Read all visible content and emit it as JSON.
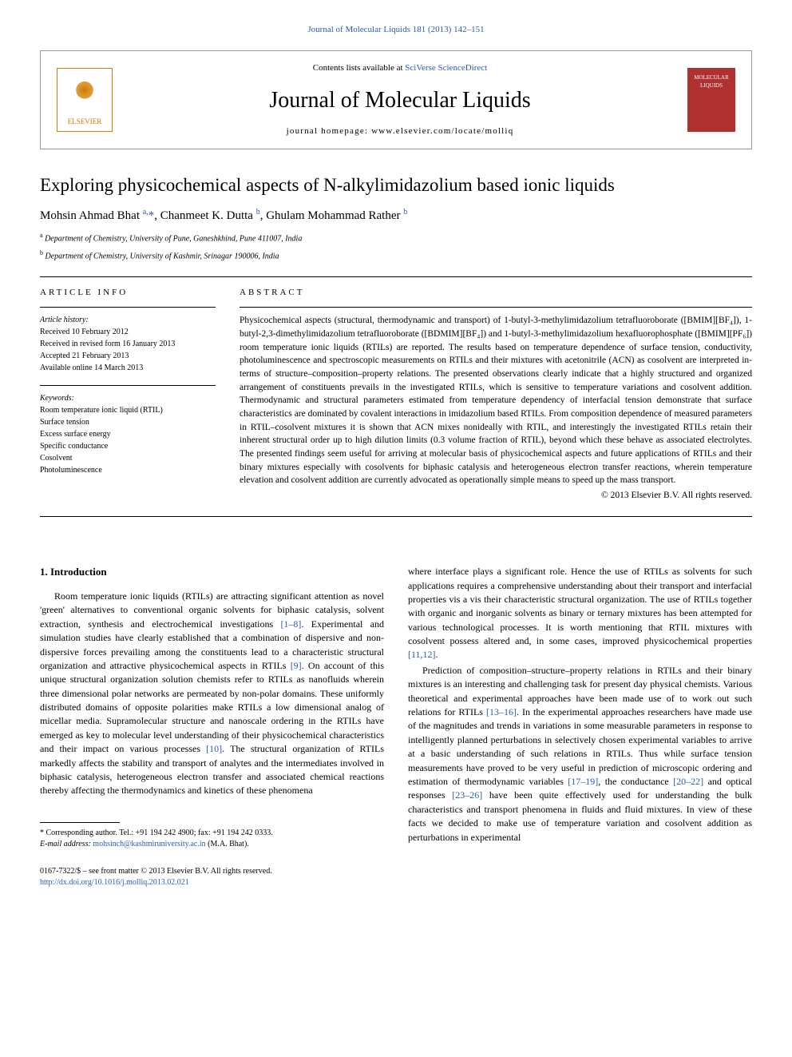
{
  "top_link": "Journal of Molecular Liquids 181 (2013) 142–151",
  "header": {
    "contents_prefix": "Contents lists available at ",
    "contents_link": "SciVerse ScienceDirect",
    "journal_name": "Journal of Molecular Liquids",
    "homepage_prefix": "journal homepage: ",
    "homepage_url": "www.elsevier.com/locate/molliq",
    "elsevier_label": "ELSEVIER",
    "cover_line1": "MOLECULAR",
    "cover_line2": "LIQUIDS"
  },
  "article": {
    "title": "Exploring physicochemical aspects of N-alkylimidazolium based ionic liquids",
    "authors_html": "Mohsin Ahmad Bhat <sup>a,</sup>*, Chanmeet K. Dutta <sup>b</sup>, Ghulam Mohammad Rather <sup>b</sup>",
    "author1": "Mohsin Ahmad Bhat",
    "author1_sup": "a,",
    "author2": "Chanmeet K. Dutta",
    "author2_sup": "b",
    "author3": "Ghulam Mohammad Rather",
    "author3_sup": "b",
    "affil_a": "Department of Chemistry, University of Pune, Ganeshkhind, Pune 411007, India",
    "affil_b": "Department of Chemistry, University of Kashmir, Srinagar 190006, India"
  },
  "info": {
    "section_label": "article info",
    "history_label": "Article history:",
    "received": "Received 10 February 2012",
    "revised": "Received in revised form 16 January 2013",
    "accepted": "Accepted 21 February 2013",
    "online": "Available online 14 March 2013",
    "keywords_label": "Keywords:",
    "kw1": "Room temperature ionic liquid (RTIL)",
    "kw2": "Surface tension",
    "kw3": "Excess surface energy",
    "kw4": "Specific conductance",
    "kw5": "Cosolvent",
    "kw6": "Photoluminescence"
  },
  "abstract": {
    "label": "abstract",
    "text": "Physicochemical aspects (structural, thermodynamic and transport) of 1-butyl-3-methylimidazolium tetrafluoroborate ([BMIM][BF₄]), 1-butyl-2,3-dimethylimidazolium tetrafluoroborate ([BDMIM][BF₄]) and 1-butyl-3-methylimidazolium hexafluorophosphate ([BMIM][PF₆]) room temperature ionic liquids (RTILs) are reported. The results based on temperature dependence of surface tension, conductivity, photoluminescence and spectroscopic measurements on RTILs and their mixtures with acetonitrile (ACN) as cosolvent are interpreted in-terms of structure–composition–property relations. The presented observations clearly indicate that a highly structured and organized arrangement of constituents prevails in the investigated RTILs, which is sensitive to temperature variations and cosolvent addition. Thermodynamic and structural parameters estimated from temperature dependency of interfacial tension demonstrate that surface characteristics are dominated by covalent interactions in imidazolium based RTILs. From composition dependence of measured parameters in RTIL–cosolvent mixtures it is shown that ACN mixes nonideally with RTIL, and interestingly the investigated RTILs retain their inherent structural order up to high dilution limits (0.3 volume fraction of RTIL), beyond which these behave as associated electrolytes. The presented findings seem useful for arriving at molecular basis of physicochemical aspects and future applications of RTILs and their binary mixtures especially with cosolvents for biphasic catalysis and heterogeneous electron transfer reactions, wherein temperature elevation and cosolvent addition are currently advocated as operationally simple means to speed up the mass transport.",
    "copyright": "© 2013 Elsevier B.V. All rights reserved."
  },
  "body": {
    "heading": "1. Introduction",
    "col1_p1_a": "Room temperature ionic liquids (RTILs) are attracting significant attention as novel 'green' alternatives to conventional organic solvents for biphasic catalysis, solvent extraction, synthesis and electrochemical investigations ",
    "col1_cite1": "[1–8]",
    "col1_p1_b": ". Experimental and simulation studies have clearly established that a combination of dispersive and non-dispersive forces prevailing among the constituents lead to a characteristic structural organization and attractive physicochemical aspects in RTILs ",
    "col1_cite2": "[9]",
    "col1_p1_c": ". On account of this unique structural organization solution chemists refer to RTILs as nanofluids wherein three dimensional polar networks are permeated by non-polar domains. These uniformly distributed domains of opposite polarities make RTILs a low dimensional analog of micellar media. Supramolecular structure and nanoscale ordering in the RTILs have emerged as key to molecular level understanding of their physicochemical characteristics and their impact on various processes ",
    "col1_cite3": "[10]",
    "col1_p1_d": ". The structural organization of RTILs markedly affects the stability and transport of analytes and the intermediates involved in biphasic catalysis, heterogeneous electron transfer and associated chemical reactions thereby affecting the thermodynamics and kinetics of these phenomena",
    "col2_p1_a": "where interface plays a significant role. Hence the use of RTILs as solvents for such applications requires a comprehensive understanding about their transport and interfacial properties vis a vis their characteristic structural organization. The use of RTILs together with organic and inorganic solvents as binary or ternary mixtures has been attempted for various technological processes. It is worth mentioning that RTIL mixtures with cosolvent possess altered and, in some cases, improved physicochemical properties ",
    "col2_cite1": "[11,12]",
    "col2_p1_b": ".",
    "col2_p2_a": "Prediction of composition–structure–property relations in RTILs and their binary mixtures is an interesting and challenging task for present day physical chemists. Various theoretical and experimental approaches have been made use of to work out such relations for RTILs ",
    "col2_cite2": "[13–16]",
    "col2_p2_b": ". In the experimental approaches researchers have made use of the magnitudes and trends in variations in some measurable parameters in response to intelligently planned perturbations in selectively chosen experimental variables to arrive at a basic understanding of such relations in RTILs. Thus while surface tension measurements have proved to be very useful in prediction of microscopic ordering and estimation of thermodynamic variables ",
    "col2_cite3": "[17–19]",
    "col2_p2_c": ", the conductance ",
    "col2_cite4": "[20–22]",
    "col2_p2_d": " and optical responses ",
    "col2_cite5": "[23–26]",
    "col2_p2_e": " have been quite effectively used for understanding the bulk characteristics and transport phenomena in fluids and fluid mixtures. In view of these facts we decided to make use of temperature variation and cosolvent addition as perturbations in experimental"
  },
  "footnotes": {
    "corr": "* Corresponding author. Tel.: +91 194 242 4900; fax: +91 194 242 0333.",
    "email_label": "E-mail address: ",
    "email": "mohsinch@kashmiruniversity.ac.in",
    "email_suffix": " (M.A. Bhat)."
  },
  "bottom": {
    "issn": "0167-7322/$ – see front matter © 2013 Elsevier B.V. All rights reserved.",
    "doi": "http://dx.doi.org/10.1016/j.molliq.2013.02.021"
  },
  "colors": {
    "link": "#2a5db0",
    "elsevier_orange": "#cc7a00",
    "cover_red": "#b03030"
  }
}
